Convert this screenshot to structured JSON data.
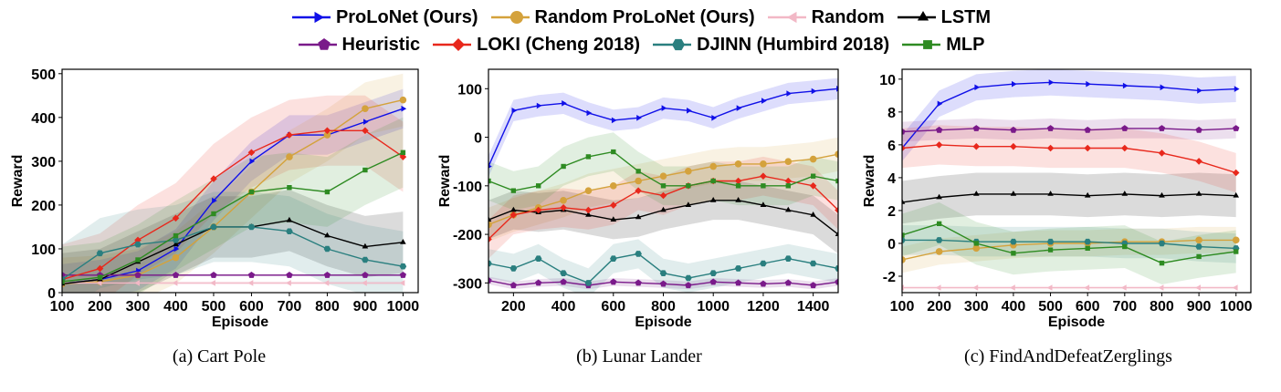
{
  "legend": [
    {
      "label": "ProLoNet (Ours)",
      "color": "#1010e8",
      "marker": "triangle-right"
    },
    {
      "label": "Random ProLoNet (Ours)",
      "color": "#d4a23c",
      "marker": "circle"
    },
    {
      "label": "Random",
      "color": "#f2b8c6",
      "marker": "triangle-left"
    },
    {
      "label": "LSTM",
      "color": "#000000",
      "marker": "triangle-up"
    },
    {
      "label": "Heuristic",
      "color": "#7a1a8a",
      "marker": "pentagon"
    },
    {
      "label": "LOKI (Cheng 2018)",
      "color": "#e8281c",
      "marker": "diamond"
    },
    {
      "label": "DJINN (Humbird 2018)",
      "color": "#2a7f7f",
      "marker": "hexagon"
    },
    {
      "label": "MLP",
      "color": "#2e8b22",
      "marker": "square"
    }
  ],
  "captions": [
    "(a) Cart Pole",
    "(b) Lunar Lander",
    "(c) FindAndDefeatZerglings"
  ],
  "chart_data": [
    {
      "type": "line",
      "title": "",
      "xlabel": "Episode",
      "ylabel": "Reward",
      "xlim": [
        100,
        1040
      ],
      "ylim": [
        0,
        510
      ],
      "xticks": [
        100,
        200,
        300,
        400,
        500,
        600,
        700,
        800,
        900,
        1000
      ],
      "yticks": [
        0,
        100,
        200,
        300,
        400,
        500
      ],
      "x": [
        100,
        200,
        300,
        400,
        500,
        600,
        700,
        800,
        900,
        1000
      ],
      "series": [
        {
          "name": "ProLoNet (Ours)",
          "values": [
            20,
            30,
            50,
            100,
            210,
            300,
            360,
            360,
            390,
            420
          ],
          "band": 45
        },
        {
          "name": "Random ProLoNet (Ours)",
          "values": [
            20,
            25,
            40,
            80,
            150,
            230,
            310,
            360,
            420,
            440
          ],
          "band": 60
        },
        {
          "name": "Random",
          "values": [
            22,
            22,
            22,
            22,
            22,
            22,
            22,
            22,
            22,
            22
          ],
          "band": 4
        },
        {
          "name": "LSTM",
          "values": [
            20,
            30,
            70,
            110,
            150,
            150,
            165,
            130,
            105,
            115
          ],
          "band": 70
        },
        {
          "name": "Heuristic",
          "values": [
            40,
            40,
            40,
            40,
            40,
            40,
            40,
            40,
            40,
            40
          ],
          "band": 2
        },
        {
          "name": "LOKI (Cheng 2018)",
          "values": [
            30,
            55,
            120,
            170,
            260,
            320,
            360,
            370,
            370,
            310
          ],
          "band": 80
        },
        {
          "name": "DJINN (Humbird 2018)",
          "values": [
            30,
            90,
            110,
            120,
            150,
            150,
            140,
            100,
            75,
            60
          ],
          "band": 80
        },
        {
          "name": "MLP",
          "values": [
            25,
            35,
            75,
            130,
            180,
            230,
            240,
            230,
            280,
            320
          ],
          "band": 80
        }
      ]
    },
    {
      "type": "line",
      "title": "",
      "xlabel": "Episode",
      "ylabel": "Reward",
      "xlim": [
        100,
        1500
      ],
      "ylim": [
        -320,
        140
      ],
      "xticks": [
        200,
        400,
        600,
        800,
        1000,
        1200,
        1400
      ],
      "yticks": [
        -300,
        -200,
        -100,
        0,
        100
      ],
      "x": [
        100,
        200,
        300,
        400,
        500,
        600,
        700,
        800,
        900,
        1000,
        1100,
        1200,
        1300,
        1400,
        1500
      ],
      "series": [
        {
          "name": "ProLoNet (Ours)",
          "values": [
            -60,
            55,
            65,
            70,
            50,
            35,
            40,
            60,
            55,
            40,
            60,
            75,
            90,
            95,
            100
          ],
          "band": 22
        },
        {
          "name": "Random ProLoNet (Ours)",
          "values": [
            -180,
            -160,
            -145,
            -130,
            -110,
            -100,
            -90,
            -80,
            -70,
            -60,
            -55,
            -55,
            -50,
            -45,
            -35
          ],
          "band": 35
        },
        {
          "name": "LSTM",
          "values": [
            -170,
            -150,
            -155,
            -150,
            -160,
            -170,
            -165,
            -150,
            -140,
            -130,
            -130,
            -140,
            -150,
            -160,
            -200
          ],
          "band": 40
        },
        {
          "name": "Heuristic",
          "values": [
            -295,
            -305,
            -300,
            -298,
            -305,
            -298,
            -300,
            -302,
            -305,
            -298,
            -300,
            -302,
            -300,
            -305,
            -298
          ],
          "band": 8
        },
        {
          "name": "LOKI (Cheng 2018)",
          "values": [
            -210,
            -160,
            -150,
            -145,
            -150,
            -140,
            -110,
            -120,
            -100,
            -90,
            -90,
            -80,
            -90,
            -100,
            -150
          ],
          "band": 40
        },
        {
          "name": "DJINN (Humbird 2018)",
          "values": [
            -260,
            -270,
            -250,
            -280,
            -300,
            -250,
            -240,
            -280,
            -290,
            -280,
            -270,
            -260,
            -250,
            -260,
            -270
          ],
          "band": 30
        },
        {
          "name": "MLP",
          "values": [
            -90,
            -110,
            -100,
            -60,
            -40,
            -30,
            -70,
            -100,
            -100,
            -90,
            -100,
            -100,
            -100,
            -80,
            -90
          ],
          "band": 40
        }
      ]
    },
    {
      "type": "line",
      "title": "",
      "xlabel": "Episode",
      "ylabel": "Reward",
      "xlim": [
        100,
        1040
      ],
      "ylim": [
        -3,
        10.6
      ],
      "xticks": [
        100,
        200,
        300,
        400,
        500,
        600,
        700,
        800,
        900,
        1000
      ],
      "yticks": [
        -2,
        0,
        2,
        4,
        6,
        8,
        10
      ],
      "ytick_labels": [
        "-2",
        "0",
        "2",
        "4",
        "6",
        "8",
        "10"
      ],
      "x": [
        100,
        200,
        300,
        400,
        500,
        600,
        700,
        800,
        900,
        1000
      ],
      "series": [
        {
          "name": "ProLoNet (Ours)",
          "values": [
            5.8,
            8.5,
            9.5,
            9.7,
            9.8,
            9.7,
            9.6,
            9.5,
            9.3,
            9.4
          ],
          "band": 0.8
        },
        {
          "name": "Random ProLoNet (Ours)",
          "values": [
            -1.0,
            -0.5,
            -0.3,
            -0.1,
            0.0,
            0.0,
            0.1,
            0.1,
            0.2,
            0.2
          ],
          "band": 0.8
        },
        {
          "name": "Random",
          "values": [
            -2.7,
            -2.7,
            -2.7,
            -2.7,
            -2.7,
            -2.7,
            -2.7,
            -2.7,
            -2.7,
            -2.7
          ],
          "band": 0.1
        },
        {
          "name": "LSTM",
          "values": [
            2.5,
            2.8,
            3.0,
            3.0,
            3.0,
            2.9,
            3.0,
            2.9,
            3.0,
            2.9
          ],
          "band": 1.3
        },
        {
          "name": "Heuristic",
          "values": [
            6.8,
            6.9,
            7.0,
            6.9,
            7.0,
            6.9,
            7.0,
            7.0,
            6.9,
            7.0
          ],
          "band": 0.6
        },
        {
          "name": "LOKI (Cheng 2018)",
          "values": [
            5.8,
            6.0,
            5.9,
            5.9,
            5.8,
            5.8,
            5.8,
            5.5,
            5.0,
            4.3
          ],
          "band": 1.2
        },
        {
          "name": "DJINN (Humbird 2018)",
          "values": [
            0.2,
            0.2,
            0.1,
            0.1,
            0.1,
            0.1,
            0.0,
            0.0,
            -0.2,
            -0.3
          ],
          "band": 0.9
        },
        {
          "name": "MLP",
          "values": [
            0.5,
            1.2,
            0.0,
            -0.6,
            -0.4,
            -0.3,
            -0.2,
            -1.2,
            -0.8,
            -0.5
          ],
          "band": 1.3
        }
      ]
    }
  ]
}
